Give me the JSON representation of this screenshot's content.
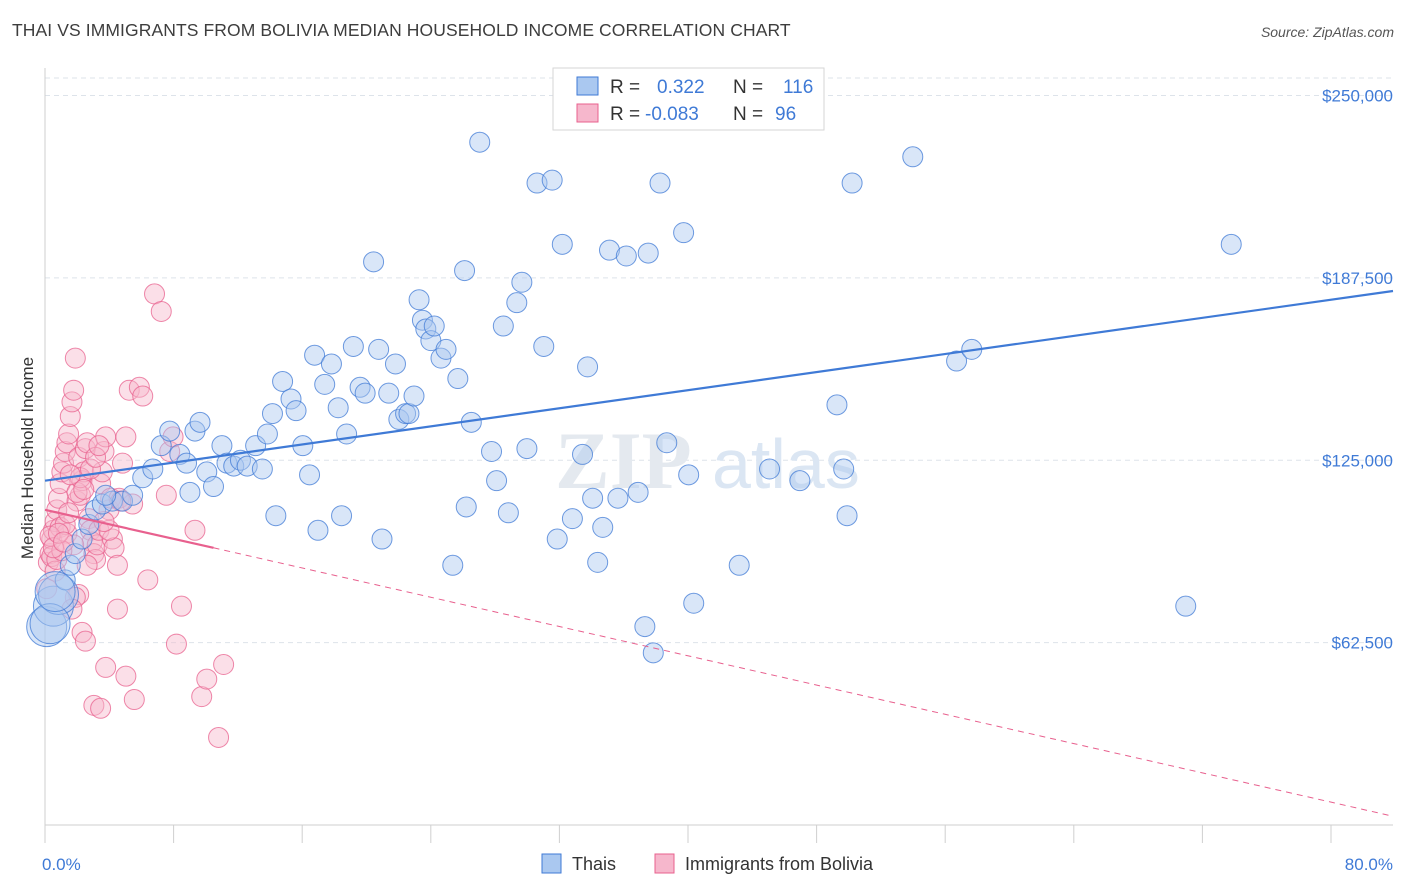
{
  "title": "THAI VS IMMIGRANTS FROM BOLIVIA MEDIAN HOUSEHOLD INCOME CORRELATION CHART",
  "source": "Source: ZipAtlas.com",
  "watermark": "ZIPatlas",
  "colors": {
    "blue": "#3f7ad6",
    "blue_fill": "#aac8f0",
    "pink": "#e8608e",
    "pink_fill": "#f6b7cc",
    "grid": "#dde3ea"
  },
  "legend": {
    "blue": {
      "r_label": "R =",
      "r": "0.322",
      "n_label": "N =",
      "n": "116"
    },
    "pink": {
      "r_label": "R =",
      "r": "-0.083",
      "n_label": "N =",
      "n": "96"
    }
  },
  "chart_data": {
    "type": "scatter",
    "title": "THAI VS IMMIGRANTS FROM BOLIVIA MEDIAN HOUSEHOLD INCOME CORRELATION CHART",
    "xlabel": "",
    "ylabel": "Median Household Income",
    "xlim": [
      0,
      80
    ],
    "ylim": [
      0,
      256000
    ],
    "x_tick_labels": [
      "0.0%",
      "80.0%"
    ],
    "y_ticks": [
      62500,
      125000,
      187500,
      250000
    ],
    "y_tick_labels": [
      "$62,500",
      "$125,000",
      "$187,500",
      "$250,000"
    ],
    "legend_names": [
      "Thais",
      "Immigrants from Bolivia"
    ],
    "series": [
      {
        "name": "Thais",
        "color": "#3f7ad6",
        "r": 0.322,
        "n": 116,
        "trend": {
          "x": [
            0,
            80
          ],
          "y": [
            118000,
            183000
          ],
          "style": "solid"
        },
        "points": [
          [
            0.1,
            68000
          ],
          [
            0.5,
            75000
          ],
          [
            0.8,
            79000
          ],
          [
            1.2,
            84000
          ],
          [
            1.5,
            89000
          ],
          [
            1.8,
            93000
          ],
          [
            2.2,
            98000
          ],
          [
            2.6,
            103000
          ],
          [
            3.0,
            108000
          ],
          [
            3.4,
            110000
          ],
          [
            4.0,
            111000
          ],
          [
            4.6,
            111000
          ],
          [
            5.2,
            113000
          ],
          [
            5.8,
            119000
          ],
          [
            6.4,
            122000
          ],
          [
            6.9,
            130000
          ],
          [
            7.4,
            135000
          ],
          [
            8.0,
            127000
          ],
          [
            8.4,
            124000
          ],
          [
            8.6,
            114000
          ],
          [
            8.9,
            135000
          ],
          [
            9.2,
            138000
          ],
          [
            9.6,
            121000
          ],
          [
            10.0,
            116000
          ],
          [
            10.5,
            130000
          ],
          [
            10.8,
            124000
          ],
          [
            11.2,
            123000
          ],
          [
            11.6,
            125000
          ],
          [
            12.0,
            123000
          ],
          [
            12.5,
            130000
          ],
          [
            12.9,
            122000
          ],
          [
            13.2,
            134000
          ],
          [
            13.5,
            141000
          ],
          [
            13.7,
            106000
          ],
          [
            14.1,
            152000
          ],
          [
            14.6,
            146000
          ],
          [
            14.9,
            142000
          ],
          [
            15.3,
            130000
          ],
          [
            15.7,
            120000
          ],
          [
            16.0,
            161000
          ],
          [
            16.2,
            101000
          ],
          [
            16.6,
            151000
          ],
          [
            17.0,
            158000
          ],
          [
            17.4,
            143000
          ],
          [
            17.6,
            106000
          ],
          [
            17.9,
            134000
          ],
          [
            18.3,
            164000
          ],
          [
            18.7,
            150000
          ],
          [
            19.0,
            148000
          ],
          [
            19.5,
            193000
          ],
          [
            19.8,
            163000
          ],
          [
            20.0,
            98000
          ],
          [
            20.4,
            148000
          ],
          [
            20.8,
            158000
          ],
          [
            21.0,
            139000
          ],
          [
            21.4,
            141000
          ],
          [
            21.6,
            141000
          ],
          [
            21.9,
            147000
          ],
          [
            22.2,
            180000
          ],
          [
            22.4,
            173000
          ],
          [
            22.6,
            170000
          ],
          [
            22.9,
            166000
          ],
          [
            23.1,
            171000
          ],
          [
            23.5,
            160000
          ],
          [
            23.8,
            163000
          ],
          [
            24.2,
            89000
          ],
          [
            24.5,
            153000
          ],
          [
            24.9,
            190000
          ],
          [
            25.0,
            109000
          ],
          [
            25.3,
            138000
          ],
          [
            25.8,
            234000
          ],
          [
            26.5,
            128000
          ],
          [
            26.8,
            118000
          ],
          [
            27.2,
            171000
          ],
          [
            27.5,
            107000
          ],
          [
            28.0,
            179000
          ],
          [
            28.3,
            186000
          ],
          [
            28.6,
            129000
          ],
          [
            29.2,
            220000
          ],
          [
            29.6,
            164000
          ],
          [
            30.1,
            221000
          ],
          [
            30.4,
            98000
          ],
          [
            30.7,
            199000
          ],
          [
            31.3,
            105000
          ],
          [
            31.9,
            127000
          ],
          [
            32.2,
            157000
          ],
          [
            32.5,
            112000
          ],
          [
            32.8,
            90000
          ],
          [
            33.1,
            102000
          ],
          [
            33.5,
            197000
          ],
          [
            34.0,
            112000
          ],
          [
            34.5,
            195000
          ],
          [
            35.2,
            114000
          ],
          [
            35.6,
            68000
          ],
          [
            35.8,
            196000
          ],
          [
            36.1,
            59000
          ],
          [
            36.5,
            220000
          ],
          [
            36.9,
            131000
          ],
          [
            37.9,
            203000
          ],
          [
            38.2,
            120000
          ],
          [
            38.5,
            76000
          ],
          [
            41.2,
            89000
          ],
          [
            43.0,
            122000
          ],
          [
            44.8,
            118000
          ],
          [
            47.0,
            144000
          ],
          [
            47.4,
            122000
          ],
          [
            47.6,
            106000
          ],
          [
            47.9,
            220000
          ],
          [
            51.5,
            229000
          ],
          [
            54.1,
            159000
          ],
          [
            55.0,
            163000
          ],
          [
            67.7,
            75000
          ],
          [
            70.4,
            199000
          ],
          [
            0.3,
            69000
          ],
          [
            0.6,
            80000
          ],
          [
            3.6,
            113000
          ]
        ]
      },
      {
        "name": "Immigrants from Bolivia",
        "color": "#e8608e",
        "r": -0.083,
        "n": 96,
        "trend": {
          "x": [
            0,
            10,
            80
          ],
          "y": [
            108000,
            95000,
            3000
          ],
          "style": "solid-then-dashed"
        },
        "points": [
          [
            0.1,
            81000
          ],
          [
            0.2,
            90000
          ],
          [
            0.3,
            93000
          ],
          [
            0.4,
            98000
          ],
          [
            0.5,
            101000
          ],
          [
            0.6,
            104000
          ],
          [
            0.7,
            108000
          ],
          [
            0.8,
            112000
          ],
          [
            0.9,
            117000
          ],
          [
            1.0,
            121000
          ],
          [
            1.1,
            124000
          ],
          [
            1.2,
            128000
          ],
          [
            1.3,
            131000
          ],
          [
            1.4,
            134000
          ],
          [
            1.5,
            140000
          ],
          [
            1.6,
            145000
          ],
          [
            1.7,
            149000
          ],
          [
            1.8,
            160000
          ],
          [
            1.9,
            111000
          ],
          [
            2.0,
            126000
          ],
          [
            2.1,
            113000
          ],
          [
            2.2,
            118000
          ],
          [
            2.3,
            121000
          ],
          [
            2.4,
            129000
          ],
          [
            2.5,
            131000
          ],
          [
            2.6,
            105000
          ],
          [
            2.7,
            101000
          ],
          [
            2.8,
            97000
          ],
          [
            2.9,
            93000
          ],
          [
            3.0,
            91000
          ],
          [
            3.1,
            96000
          ],
          [
            3.2,
            101000
          ],
          [
            3.3,
            117000
          ],
          [
            3.4,
            121000
          ],
          [
            3.5,
            128000
          ],
          [
            3.6,
            133000
          ],
          [
            3.8,
            108000
          ],
          [
            3.9,
            112000
          ],
          [
            4.0,
            98000
          ],
          [
            4.1,
            95000
          ],
          [
            4.3,
            89000
          ],
          [
            4.4,
            112000
          ],
          [
            4.6,
            124000
          ],
          [
            4.8,
            133000
          ],
          [
            5.0,
            149000
          ],
          [
            5.2,
            110000
          ],
          [
            5.6,
            150000
          ],
          [
            5.8,
            147000
          ],
          [
            6.1,
            84000
          ],
          [
            6.5,
            182000
          ],
          [
            6.9,
            176000
          ],
          [
            7.2,
            113000
          ],
          [
            7.4,
            128000
          ],
          [
            7.6,
            133000
          ],
          [
            7.8,
            62000
          ],
          [
            8.1,
            75000
          ],
          [
            8.9,
            101000
          ],
          [
            9.3,
            44000
          ],
          [
            9.6,
            50000
          ],
          [
            10.3,
            30000
          ],
          [
            10.6,
            55000
          ],
          [
            2.2,
            66000
          ],
          [
            2.4,
            63000
          ],
          [
            2.0,
            79000
          ],
          [
            1.8,
            78000
          ],
          [
            1.6,
            74000
          ],
          [
            2.9,
            41000
          ],
          [
            3.3,
            40000
          ],
          [
            3.6,
            54000
          ],
          [
            4.3,
            74000
          ],
          [
            4.8,
            51000
          ],
          [
            5.3,
            43000
          ],
          [
            0.9,
            102000
          ],
          [
            1.3,
            100000
          ],
          [
            1.7,
            96000
          ],
          [
            2.5,
            89000
          ],
          [
            3.8,
            101000
          ],
          [
            4.5,
            111000
          ],
          [
            0.4,
            92000
          ],
          [
            0.6,
            87000
          ],
          [
            0.7,
            91000
          ],
          [
            1.0,
            94000
          ],
          [
            1.2,
            103000
          ],
          [
            1.4,
            107000
          ],
          [
            1.9,
            114000
          ],
          [
            2.1,
            119000
          ],
          [
            2.3,
            115000
          ],
          [
            2.7,
            122000
          ],
          [
            3.0,
            126000
          ],
          [
            3.2,
            130000
          ],
          [
            3.5,
            104000
          ],
          [
            0.3,
            99000
          ],
          [
            0.5,
            95000
          ],
          [
            0.8,
            100000
          ],
          [
            1.1,
            97000
          ],
          [
            1.5,
            120000
          ]
        ]
      }
    ]
  }
}
